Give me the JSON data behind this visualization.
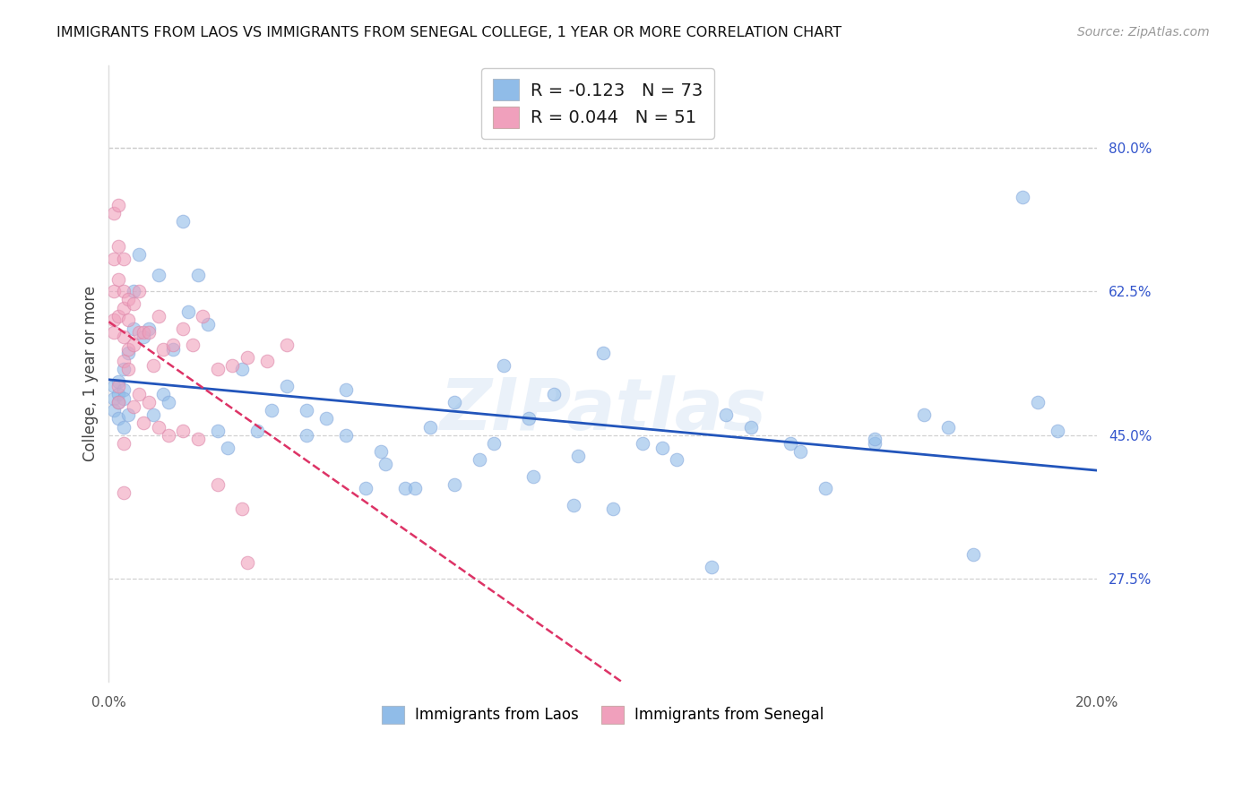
{
  "title": "IMMIGRANTS FROM LAOS VS IMMIGRANTS FROM SENEGAL COLLEGE, 1 YEAR OR MORE CORRELATION CHART",
  "source": "Source: ZipAtlas.com",
  "ylabel": "College, 1 year or more",
  "xlim": [
    0.0,
    0.2
  ],
  "ylim": [
    0.15,
    0.9
  ],
  "xtick_vals": [
    0.0,
    0.04,
    0.08,
    0.12,
    0.16,
    0.2
  ],
  "xtick_labels": [
    "0.0%",
    "",
    "",
    "",
    "",
    "20.0%"
  ],
  "ytick_vals_right": [
    0.8,
    0.625,
    0.45,
    0.275
  ],
  "ytick_labels_right": [
    "80.0%",
    "62.5%",
    "45.0%",
    "27.5%"
  ],
  "background_color": "#ffffff",
  "grid_color": "#cccccc",
  "watermark": "ZIPatlas",
  "laos_color": "#90bce8",
  "senegal_color": "#f0a0bc",
  "laos_line_color": "#2255bb",
  "senegal_line_color": "#dd3366",
  "legend_label_blue": "R = -0.123   N = 73",
  "legend_label_pink": "R = 0.044   N = 51",
  "bottom_label_blue": "Immigrants from Laos",
  "bottom_label_pink": "Immigrants from Senegal",
  "laos_x": [
    0.001,
    0.001,
    0.001,
    0.002,
    0.002,
    0.002,
    0.002,
    0.003,
    0.003,
    0.003,
    0.003,
    0.004,
    0.004,
    0.005,
    0.005,
    0.006,
    0.007,
    0.008,
    0.009,
    0.01,
    0.011,
    0.012,
    0.013,
    0.015,
    0.016,
    0.018,
    0.02,
    0.022,
    0.024,
    0.027,
    0.03,
    0.033,
    0.036,
    0.04,
    0.044,
    0.048,
    0.052,
    0.056,
    0.06,
    0.065,
    0.07,
    0.075,
    0.08,
    0.085,
    0.09,
    0.095,
    0.1,
    0.108,
    0.115,
    0.122,
    0.13,
    0.138,
    0.145,
    0.155,
    0.165,
    0.175,
    0.185,
    0.192,
    0.04,
    0.048,
    0.055,
    0.062,
    0.07,
    0.078,
    0.086,
    0.094,
    0.102,
    0.112,
    0.125,
    0.14,
    0.155,
    0.17,
    0.188
  ],
  "laos_y": [
    0.51,
    0.495,
    0.48,
    0.515,
    0.5,
    0.49,
    0.47,
    0.505,
    0.495,
    0.53,
    0.46,
    0.55,
    0.475,
    0.625,
    0.58,
    0.67,
    0.57,
    0.58,
    0.475,
    0.645,
    0.5,
    0.49,
    0.555,
    0.71,
    0.6,
    0.645,
    0.585,
    0.455,
    0.435,
    0.53,
    0.455,
    0.48,
    0.51,
    0.45,
    0.47,
    0.505,
    0.385,
    0.415,
    0.385,
    0.46,
    0.49,
    0.42,
    0.535,
    0.47,
    0.5,
    0.425,
    0.55,
    0.44,
    0.42,
    0.29,
    0.46,
    0.44,
    0.385,
    0.44,
    0.475,
    0.305,
    0.74,
    0.455,
    0.48,
    0.45,
    0.43,
    0.385,
    0.39,
    0.44,
    0.4,
    0.365,
    0.36,
    0.435,
    0.475,
    0.43,
    0.445,
    0.46,
    0.49
  ],
  "senegal_x": [
    0.001,
    0.001,
    0.001,
    0.001,
    0.002,
    0.002,
    0.002,
    0.002,
    0.003,
    0.003,
    0.003,
    0.003,
    0.004,
    0.004,
    0.004,
    0.005,
    0.005,
    0.006,
    0.006,
    0.007,
    0.008,
    0.009,
    0.01,
    0.011,
    0.013,
    0.015,
    0.017,
    0.019,
    0.022,
    0.025,
    0.028,
    0.032,
    0.036,
    0.002,
    0.003,
    0.004,
    0.005,
    0.006,
    0.007,
    0.008,
    0.01,
    0.012,
    0.015,
    0.018,
    0.022,
    0.027,
    0.001,
    0.002,
    0.003,
    0.003,
    0.028
  ],
  "senegal_y": [
    0.59,
    0.625,
    0.665,
    0.72,
    0.595,
    0.64,
    0.68,
    0.73,
    0.625,
    0.665,
    0.605,
    0.57,
    0.59,
    0.555,
    0.615,
    0.61,
    0.56,
    0.625,
    0.575,
    0.575,
    0.575,
    0.535,
    0.595,
    0.555,
    0.56,
    0.58,
    0.56,
    0.595,
    0.53,
    0.535,
    0.545,
    0.54,
    0.56,
    0.51,
    0.54,
    0.53,
    0.485,
    0.5,
    0.465,
    0.49,
    0.46,
    0.45,
    0.455,
    0.445,
    0.39,
    0.36,
    0.575,
    0.49,
    0.44,
    0.38,
    0.295
  ]
}
